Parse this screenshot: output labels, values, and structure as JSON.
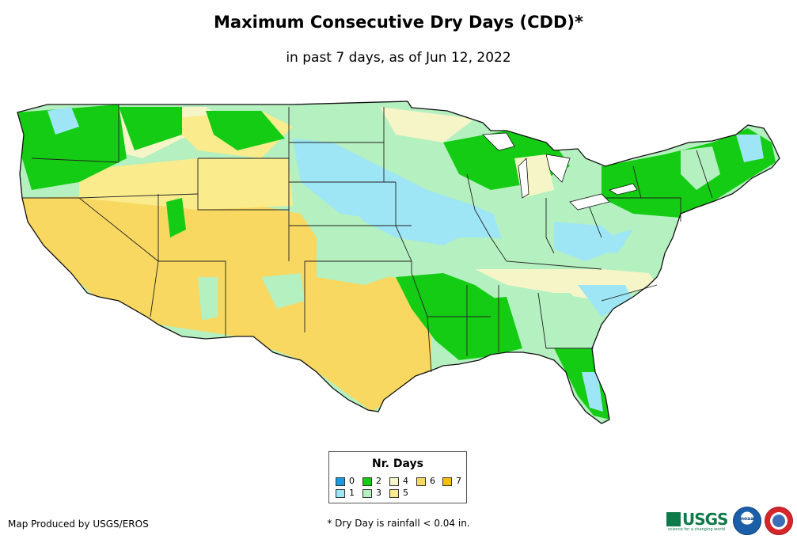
{
  "title": "Maximum Consecutive Dry Days (CDD)*",
  "subtitle": "in past 7 days, as of Jun 12, 2022",
  "legend": {
    "title": "Nr. Days",
    "items": [
      {
        "label": "0",
        "color": "#1a9be0"
      },
      {
        "label": "1",
        "color": "#9ee6f5"
      },
      {
        "label": "2",
        "color": "#14cc14"
      },
      {
        "label": "3",
        "color": "#b4f0c0"
      },
      {
        "label": "4",
        "color": "#f5f5c8"
      },
      {
        "label": "5",
        "color": "#faeb8c"
      },
      {
        "label": "6",
        "color": "#f8d860"
      },
      {
        "label": "7",
        "color": "#f5c000"
      }
    ]
  },
  "credit": "Map Produced by USGS/EROS",
  "footnote": "* Dry Day is rainfall < 0.04 in.",
  "logos": {
    "usgs_text": "USGS",
    "usgs_tagline": "science for a changing world",
    "noaa_text": "noaa"
  },
  "colors": {
    "state_border": "#222222",
    "outline": "#111111"
  }
}
